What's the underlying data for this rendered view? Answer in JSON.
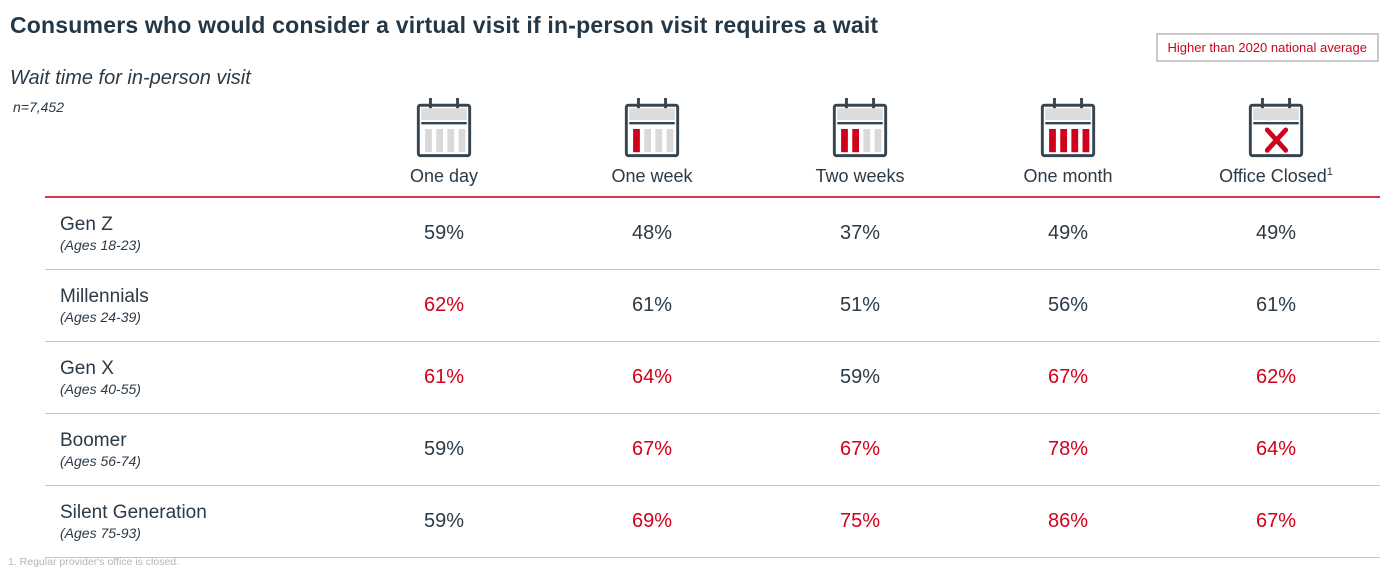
{
  "title": "Consumers who would consider a virtual visit if in-person visit requires a wait",
  "subtitle": "Wait time for in-person visit",
  "sample_size": "n=7,452",
  "legend_flag": {
    "label": "Higher than 2020 national average"
  },
  "footnote": "1.  Regular provider's office is closed.",
  "colors": {
    "navy_text": "#2b3a47",
    "highlight_red": "#d0021b",
    "header_rule_red": "#d8374d",
    "row_divider_gray": "#c6c6c6",
    "icon_bar_gray": "#d9d9d9",
    "icon_outline_navy": "#36454f",
    "flag_border_gray": "#c9c9c9"
  },
  "chart_data": {
    "type": "table",
    "title": "Consumers who would consider a virtual visit if in-person visit requires a wait",
    "subtitle": "Wait time for in-person visit",
    "sample_size": "n=7,452",
    "highlight_meaning": "Higher than 2020 national average",
    "columns": [
      {
        "label": "One day",
        "icon": "calendar-no-red-bars-icon",
        "red_bars": 0
      },
      {
        "label": "One week",
        "icon": "calendar-one-red-bar-icon",
        "red_bars": 1
      },
      {
        "label": "Two weeks",
        "icon": "calendar-two-red-bars-icon",
        "red_bars": 2
      },
      {
        "label": "One month",
        "icon": "calendar-four-red-bars-icon",
        "red_bars": 4
      },
      {
        "label": "Office Closed",
        "icon": "calendar-x-icon",
        "superscript": "1"
      }
    ],
    "rows": [
      {
        "generation": "Gen Z",
        "ages": "(Ages 18-23)",
        "values": [
          {
            "text": "59%",
            "higher": false
          },
          {
            "text": "48%",
            "higher": false
          },
          {
            "text": "37%",
            "higher": false
          },
          {
            "text": "49%",
            "higher": false
          },
          {
            "text": "49%",
            "higher": false
          }
        ]
      },
      {
        "generation": "Millennials",
        "ages": "(Ages 24-39)",
        "values": [
          {
            "text": "62%",
            "higher": true
          },
          {
            "text": "61%",
            "higher": false
          },
          {
            "text": "51%",
            "higher": false
          },
          {
            "text": "56%",
            "higher": false
          },
          {
            "text": "61%",
            "higher": false
          }
        ]
      },
      {
        "generation": "Gen X",
        "ages": "(Ages 40-55)",
        "values": [
          {
            "text": "61%",
            "higher": true
          },
          {
            "text": "64%",
            "higher": true
          },
          {
            "text": "59%",
            "higher": false
          },
          {
            "text": "67%",
            "higher": true
          },
          {
            "text": "62%",
            "higher": true
          }
        ]
      },
      {
        "generation": "Boomer",
        "ages": "(Ages 56-74)",
        "values": [
          {
            "text": "59%",
            "higher": false
          },
          {
            "text": "67%",
            "higher": true
          },
          {
            "text": "67%",
            "higher": true
          },
          {
            "text": "78%",
            "higher": true
          },
          {
            "text": "64%",
            "higher": true
          }
        ]
      },
      {
        "generation": "Silent Generation",
        "ages": "(Ages 75-93)",
        "values": [
          {
            "text": "59%",
            "higher": false
          },
          {
            "text": "69%",
            "higher": true
          },
          {
            "text": "75%",
            "higher": true
          },
          {
            "text": "86%",
            "higher": true
          },
          {
            "text": "67%",
            "higher": true
          }
        ]
      }
    ]
  }
}
